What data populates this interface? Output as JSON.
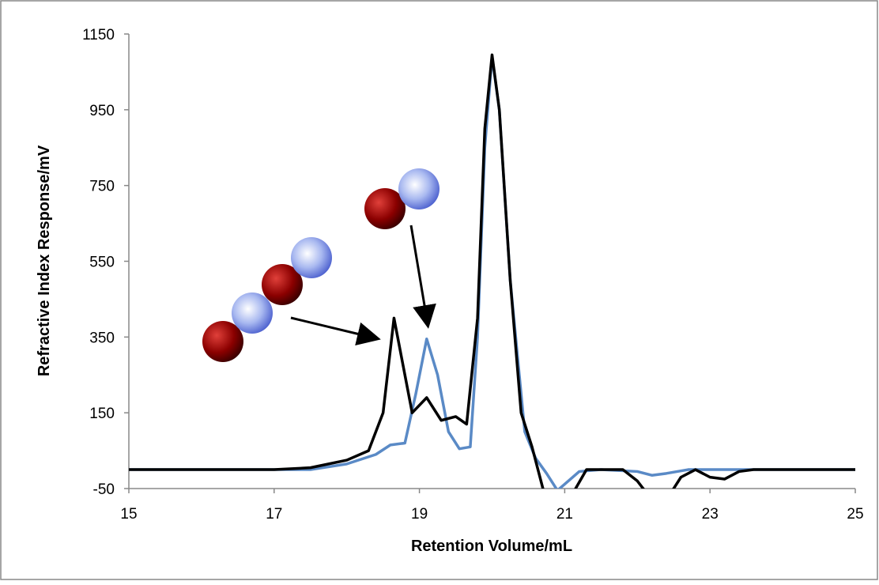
{
  "chart_data": {
    "type": "line",
    "xlabel": "Retention Volume/mL",
    "ylabel": "Refractive Index Response/mV",
    "xlim": [
      15,
      25
    ],
    "xticks": [
      15,
      17,
      19,
      21,
      23,
      25
    ],
    "ylim": [
      -50,
      1150
    ],
    "yticks": [
      -50,
      150,
      350,
      550,
      750,
      950,
      1150
    ],
    "grid": false,
    "series": [
      {
        "color": "#5a8ac6",
        "x": [
          15,
          17.5,
          18,
          18.4,
          18.6,
          18.8,
          18.95,
          19.1,
          19.25,
          19.4,
          19.55,
          19.7,
          19.8,
          19.9,
          20.0,
          20.1,
          20.25,
          20.45,
          20.6,
          20.75,
          20.9,
          21.05,
          21.2,
          21.5,
          22.0,
          22.2,
          22.4,
          22.7,
          23.0,
          25
        ],
        "values": [
          0,
          0,
          15,
          40,
          65,
          70,
          200,
          345,
          250,
          100,
          55,
          60,
          350,
          850,
          1090,
          950,
          500,
          100,
          30,
          -10,
          -55,
          -30,
          -5,
          0,
          -5,
          -15,
          -10,
          0,
          0,
          0
        ]
      },
      {
        "color": "#000000",
        "x": [
          15,
          17,
          17.5,
          18,
          18.3,
          18.5,
          18.65,
          18.8,
          18.9,
          19.1,
          19.3,
          19.5,
          19.65,
          19.8,
          19.9,
          20.0,
          20.1,
          20.25,
          20.4,
          20.55,
          20.7,
          20.8,
          21.0,
          21.15,
          21.3,
          21.8,
          22.0,
          22.2,
          22.4,
          22.6,
          22.8,
          23.0,
          23.2,
          23.4,
          23.6,
          25
        ],
        "values": [
          0,
          0,
          5,
          25,
          50,
          150,
          400,
          250,
          150,
          190,
          130,
          140,
          120,
          400,
          900,
          1095,
          950,
          500,
          150,
          60,
          -50,
          -120,
          -120,
          -50,
          0,
          0,
          -30,
          -80,
          -80,
          -20,
          0,
          -20,
          -25,
          -5,
          0,
          0
        ]
      }
    ]
  }
}
